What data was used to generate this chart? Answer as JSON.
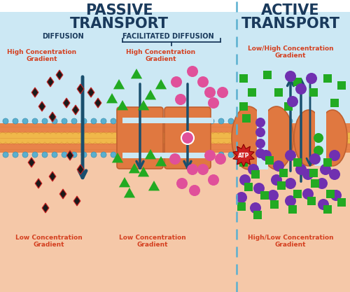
{
  "title_passive": "PASSIVE\nTRANSPORT",
  "title_active": "ACTIVE\nTRANSPORT",
  "label_diffusion": "DIFFUSION",
  "label_facilitated": "FACILITATED DIFFUSION",
  "label_high_conc_left": "High Concentration\nGradient",
  "label_high_conc_mid": "High Concentration\nGradient",
  "label_low_conc_left": "Low Concentration\nGradient",
  "label_low_conc_mid": "Low Concentration\nGradient",
  "label_low_high_right": "Low/High Concentration\nGradient",
  "label_high_low_right": "High/Low Concentration\nGradient",
  "label_atp": "ATP",
  "bg_top": "#cce8f4",
  "bg_bottom": "#f5c8a8",
  "bg_white": "#ffffff",
  "membrane_orange": "#e8834a",
  "membrane_yellow": "#f0b84a",
  "membrane_dot_color": "#5ab0d0",
  "title_color": "#1a3a5c",
  "section_label_color": "#1a3a5c",
  "conc_color": "#d44020",
  "arrow_color": "#1a4f6e",
  "particle_dark": "#1a1a1a",
  "particle_red_outline": "#cc2222",
  "particle_green": "#22aa22",
  "particle_pink": "#e0509a",
  "particle_purple": "#7030b0",
  "atp_color": "#cc2020",
  "divider_color": "#5ab0d0",
  "bracket_color": "#1a3a5c",
  "fig_width": 5.0,
  "fig_height": 4.17,
  "dpi": 100
}
